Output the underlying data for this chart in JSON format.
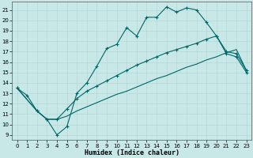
{
  "title": "",
  "xlabel": "Humidex (Indice chaleur)",
  "bg_color": "#c8e8e8",
  "line_color": "#006666",
  "xlim": [
    -0.5,
    23.5
  ],
  "ylim": [
    8.5,
    21.8
  ],
  "xticks": [
    0,
    1,
    2,
    3,
    4,
    5,
    6,
    7,
    8,
    9,
    10,
    11,
    12,
    13,
    14,
    15,
    16,
    17,
    18,
    19,
    20,
    21,
    22,
    23
  ],
  "yticks": [
    9,
    10,
    11,
    12,
    13,
    14,
    15,
    16,
    17,
    18,
    19,
    20,
    21
  ],
  "curve_top": {
    "x": [
      0,
      1,
      2,
      3,
      4,
      5,
      6,
      7,
      8,
      9,
      10,
      11,
      12,
      13,
      14,
      15,
      16,
      17,
      18,
      19,
      20,
      21,
      22,
      23
    ],
    "y": [
      13.5,
      12.8,
      11.3,
      10.5,
      9.0,
      9.8,
      13.0,
      14.0,
      15.6,
      17.3,
      17.7,
      19.3,
      18.5,
      20.3,
      20.3,
      21.3,
      20.8,
      21.2,
      21.0,
      19.8,
      18.5,
      16.8,
      16.5,
      15.0
    ]
  },
  "curve_mid": {
    "x": [
      0,
      2,
      3,
      4,
      5,
      6,
      7,
      8,
      9,
      10,
      11,
      12,
      13,
      14,
      15,
      16,
      17,
      18,
      19,
      20,
      21,
      22,
      23
    ],
    "y": [
      13.5,
      11.3,
      10.5,
      10.5,
      11.5,
      12.5,
      13.2,
      13.7,
      14.2,
      14.7,
      15.2,
      15.7,
      16.1,
      16.5,
      16.9,
      17.2,
      17.5,
      17.8,
      18.2,
      18.5,
      17.0,
      16.8,
      15.2
    ]
  },
  "curve_bot": {
    "x": [
      0,
      2,
      3,
      4,
      5,
      6,
      7,
      8,
      9,
      10,
      11,
      12,
      13,
      14,
      15,
      16,
      17,
      18,
      19,
      20,
      21,
      22,
      23
    ],
    "y": [
      13.5,
      11.3,
      10.5,
      10.5,
      10.8,
      11.3,
      11.7,
      12.1,
      12.5,
      12.9,
      13.2,
      13.6,
      14.0,
      14.4,
      14.7,
      15.1,
      15.5,
      15.8,
      16.2,
      16.5,
      16.9,
      17.2,
      15.2
    ]
  }
}
